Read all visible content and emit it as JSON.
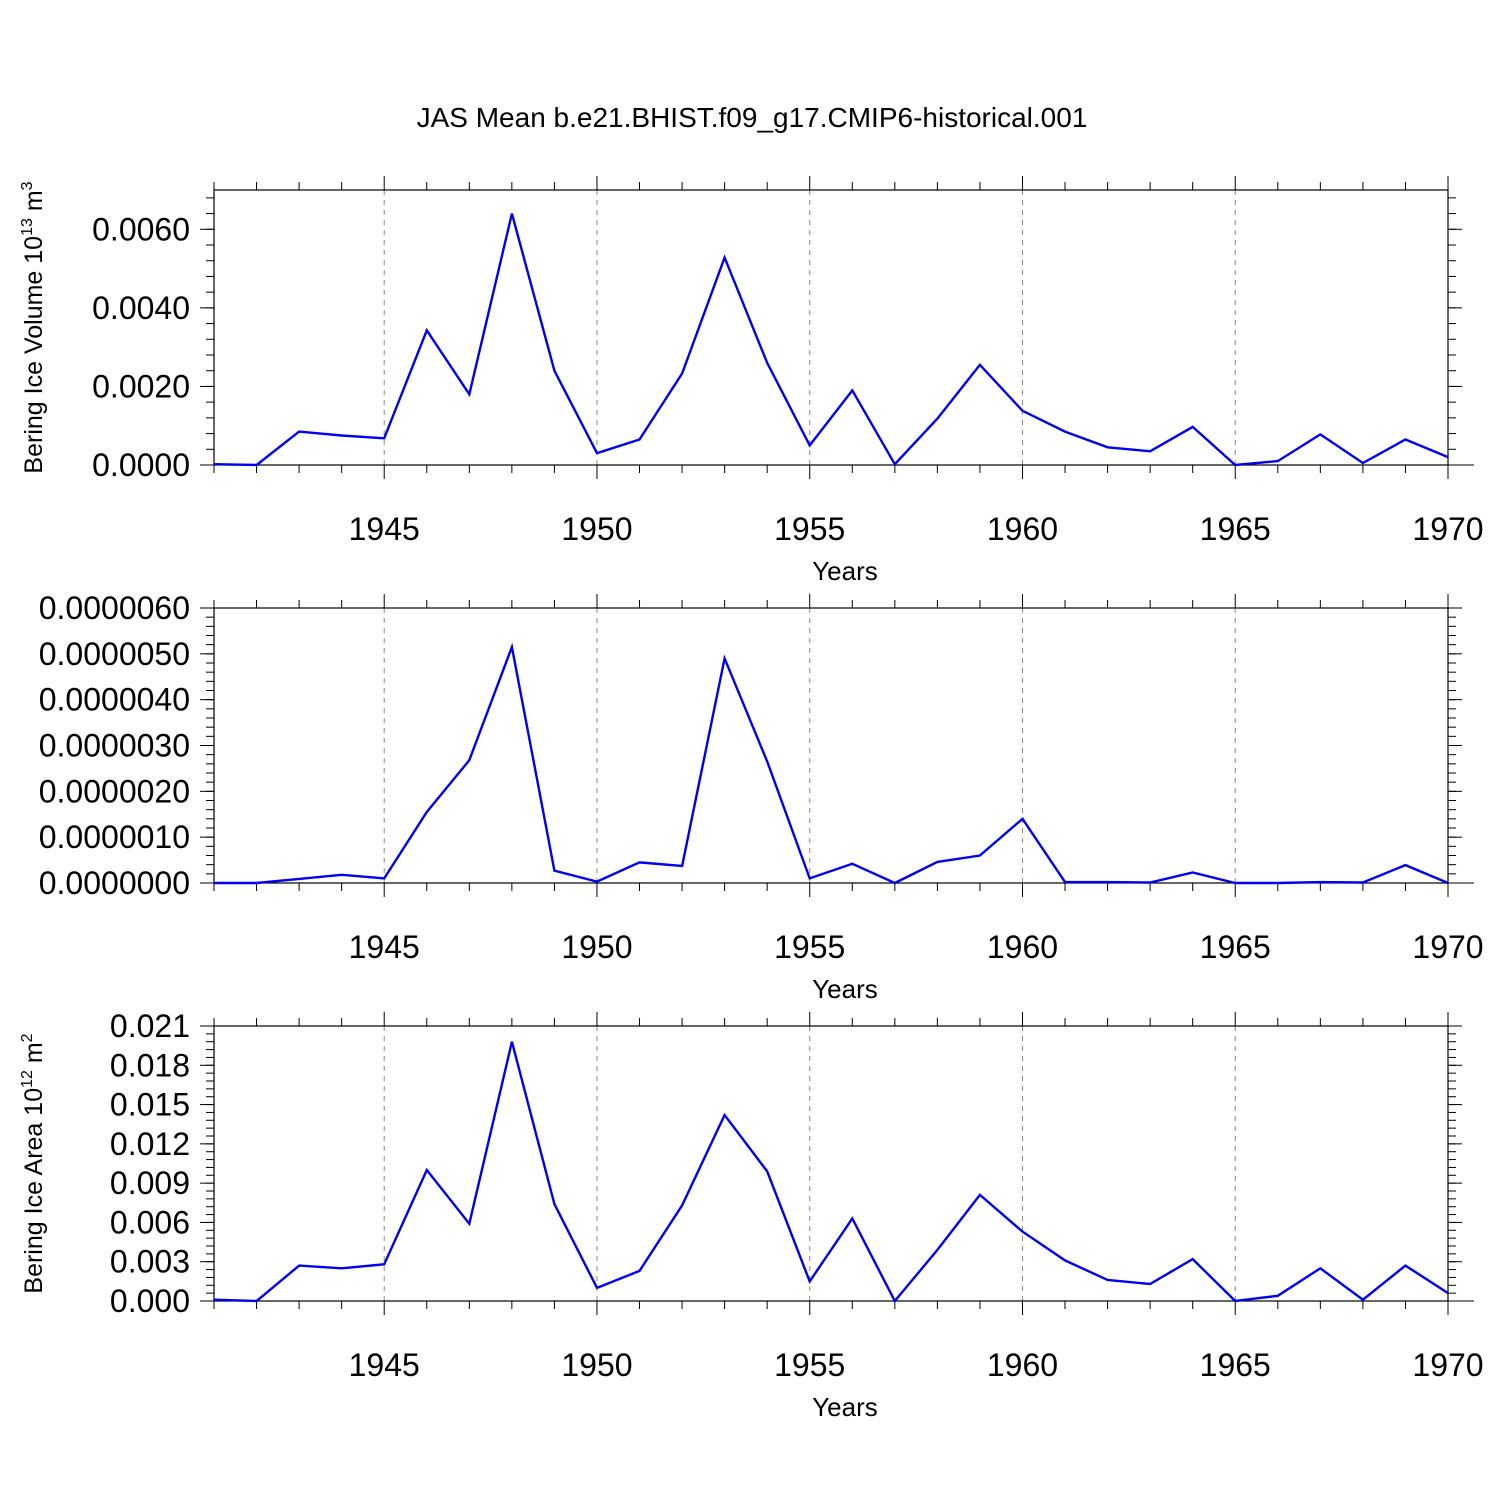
{
  "title": "JAS Mean b.e21.BHIST.f09_g17.CMIP6-historical.001",
  "line_color": "#0000ee",
  "chart_data": [
    {
      "type": "line",
      "id": "volume",
      "ylabel_main": "Bering Ice Volume 10",
      "ylabel_exp": "13",
      "ylabel_unit": " m",
      "ylabel_unit_exp": "3",
      "xlabel": "Years",
      "xlim": [
        1941,
        1970
      ],
      "ylim": [
        0,
        0.007
      ],
      "yticks": [
        0,
        0.002,
        0.004,
        0.006
      ],
      "ytick_labels": [
        "0.0000",
        "0.0020",
        "0.0040",
        "0.0060"
      ],
      "xticks": [
        1945,
        1950,
        1955,
        1960,
        1965,
        1970
      ],
      "xtick_labels": [
        "1945",
        "1950",
        "1955",
        "1960",
        "1965",
        "1970"
      ],
      "x": [
        1941,
        1942,
        1943,
        1944,
        1945,
        1946,
        1947,
        1948,
        1949,
        1950,
        1951,
        1952,
        1953,
        1954,
        1955,
        1956,
        1957,
        1958,
        1959,
        1960,
        1961,
        1962,
        1963,
        1964,
        1965,
        1966,
        1967,
        1968,
        1969,
        1970
      ],
      "values": [
        2e-05,
        0.0,
        0.00085,
        0.00075,
        0.00068,
        0.00343,
        0.0018,
        0.0064,
        0.0024,
        0.0003,
        0.00065,
        0.00233,
        0.00528,
        0.0026,
        0.0005,
        0.0019,
        2e-05,
        0.00118,
        0.00255,
        0.00138,
        0.00085,
        0.00045,
        0.00035,
        0.00097,
        0.0,
        0.0001,
        0.00078,
        5e-05,
        0.00065,
        0.0002
      ]
    },
    {
      "type": "line",
      "id": "thickness",
      "ylabel_main": "",
      "xlabel": "Years",
      "xlim": [
        1941,
        1970
      ],
      "ylim": [
        0,
        6e-06
      ],
      "yticks": [
        0,
        1e-06,
        2e-06,
        3e-06,
        4e-06,
        5e-06,
        6e-06
      ],
      "ytick_labels": [
        "0.0000000",
        "0.0000010",
        "0.0000020",
        "0.0000030",
        "0.0000040",
        "0.0000050",
        "0.0000060"
      ],
      "xticks": [
        1945,
        1950,
        1955,
        1960,
        1965,
        1970
      ],
      "xtick_labels": [
        "1945",
        "1950",
        "1955",
        "1960",
        "1965",
        "1970"
      ],
      "x": [
        1941,
        1942,
        1943,
        1944,
        1945,
        1946,
        1947,
        1948,
        1949,
        1950,
        1951,
        1952,
        1953,
        1954,
        1955,
        1956,
        1957,
        1958,
        1959,
        1960,
        1961,
        1962,
        1963,
        1964,
        1965,
        1966,
        1967,
        1968,
        1969,
        1970
      ],
      "values": [
        0.0,
        0.0,
        9e-08,
        1.8e-07,
        1e-07,
        1.55e-06,
        2.68e-06,
        5.15e-06,
        2.7e-07,
        3e-08,
        4.5e-07,
        3.7e-07,
        4.9e-06,
        2.65e-06,
        1e-07,
        4.2e-07,
        0.0,
        4.6e-07,
        6e-07,
        1.4e-06,
        2e-08,
        2e-08,
        1e-08,
        2.3e-07,
        0.0,
        0.0,
        2e-08,
        1e-08,
        3.9e-07,
        0.0
      ]
    },
    {
      "type": "line",
      "id": "area",
      "ylabel_main": "Bering Ice Area 10",
      "ylabel_exp": "12",
      "ylabel_unit": " m",
      "ylabel_unit_exp": "2",
      "xlabel": "Years",
      "xlim": [
        1941,
        1970
      ],
      "ylim": [
        0,
        0.021
      ],
      "yticks": [
        0,
        0.003,
        0.006,
        0.009,
        0.012,
        0.015,
        0.018,
        0.021
      ],
      "ytick_labels": [
        "0.000",
        "0.003",
        "0.006",
        "0.009",
        "0.012",
        "0.015",
        "0.018",
        "0.021"
      ],
      "xticks": [
        1945,
        1950,
        1955,
        1960,
        1965,
        1970
      ],
      "xtick_labels": [
        "1945",
        "1950",
        "1955",
        "1960",
        "1965",
        "1970"
      ],
      "x": [
        1941,
        1942,
        1943,
        1944,
        1945,
        1946,
        1947,
        1948,
        1949,
        1950,
        1951,
        1952,
        1953,
        1954,
        1955,
        1956,
        1957,
        1958,
        1959,
        1960,
        1961,
        1962,
        1963,
        1964,
        1965,
        1966,
        1967,
        1968,
        1969,
        1970
      ],
      "values": [
        0.0001,
        0.0,
        0.0027,
        0.0025,
        0.0028,
        0.01,
        0.0059,
        0.0198,
        0.0074,
        0.001,
        0.0023,
        0.0073,
        0.0142,
        0.0099,
        0.0015,
        0.0063,
        0.0,
        0.0039,
        0.0081,
        0.0053,
        0.0031,
        0.0016,
        0.0013,
        0.0032,
        0.0,
        0.0004,
        0.0025,
        0.0001,
        0.0027,
        0.0006
      ]
    }
  ]
}
